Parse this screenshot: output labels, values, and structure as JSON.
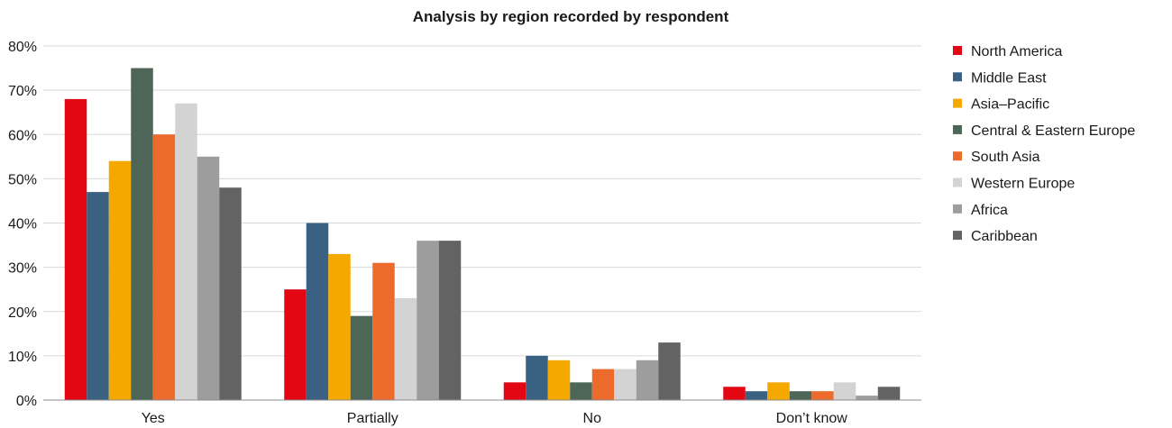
{
  "chart_data": {
    "type": "bar",
    "title": "Analysis by region recorded by respondent",
    "xlabel": "",
    "ylabel": "",
    "categories": [
      "Yes",
      "Partially",
      "No",
      "Don’t know"
    ],
    "ylim": [
      0,
      80
    ],
    "y_ticks": [
      0,
      10,
      20,
      30,
      40,
      50,
      60,
      70,
      80
    ],
    "y_tick_labels": [
      "0%",
      "10%",
      "20%",
      "30%",
      "40%",
      "50%",
      "60%",
      "70%",
      "80%"
    ],
    "grid": true,
    "legend_position": "right",
    "series": [
      {
        "name": "North America",
        "color": "#e30613",
        "values": [
          68,
          25,
          4,
          3
        ]
      },
      {
        "name": "Middle East",
        "color": "#3b6182",
        "values": [
          47,
          40,
          10,
          2
        ]
      },
      {
        "name": "Asia–Pacific",
        "color": "#f5a800",
        "values": [
          54,
          33,
          9,
          4
        ]
      },
      {
        "name": "Central & Eastern Europe",
        "color": "#4d6658",
        "values": [
          75,
          19,
          4,
          2
        ]
      },
      {
        "name": "South Asia",
        "color": "#ec6a2c",
        "values": [
          60,
          31,
          7,
          2
        ]
      },
      {
        "name": "Western Europe",
        "color": "#d3d3d3",
        "values": [
          67,
          23,
          7,
          4
        ]
      },
      {
        "name": "Africa",
        "color": "#9d9d9d",
        "values": [
          55,
          36,
          9,
          1
        ]
      },
      {
        "name": "Caribbean",
        "color": "#636363",
        "values": [
          48,
          36,
          13,
          3
        ]
      }
    ]
  }
}
